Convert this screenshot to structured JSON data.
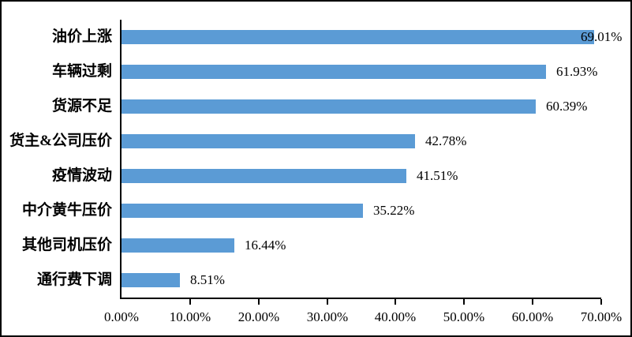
{
  "chart_data": {
    "type": "bar",
    "orientation": "horizontal",
    "title": "",
    "xlabel": "",
    "ylabel": "",
    "categories": [
      "油价上涨",
      "车辆过剩",
      "货源不足",
      "货主&公司压价",
      "疫情波动",
      "中介黄牛压价",
      "其他司机压价",
      "通行费下调"
    ],
    "values": [
      69.01,
      61.93,
      60.39,
      42.78,
      41.51,
      35.22,
      16.44,
      8.51
    ],
    "value_labels": [
      "69.01%",
      "61.93%",
      "60.39%",
      "42.78%",
      "41.51%",
      "35.22%",
      "16.44%",
      "8.51%"
    ],
    "x_ticks": [
      0,
      10,
      20,
      30,
      40,
      50,
      60,
      70
    ],
    "x_tick_labels": [
      "0.00%",
      "10.00%",
      "20.00%",
      "30.00%",
      "40.00%",
      "50.00%",
      "60.00%",
      "70.00%"
    ],
    "xlim": [
      0,
      70
    ],
    "grid": false,
    "legend": null,
    "colors": {
      "bar": "#5B9BD5",
      "axis": "#000000",
      "text": "#000000",
      "frame": "#000000",
      "background": "#ffffff"
    }
  }
}
